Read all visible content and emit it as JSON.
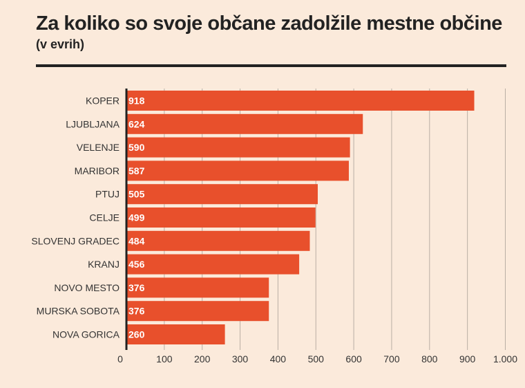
{
  "chart_data": {
    "type": "bar",
    "orientation": "horizontal",
    "title": "Za koliko so svoje občane zadolžile mestne občine",
    "subtitle": "(v evrih)",
    "categories": [
      "KOPER",
      "LJUBLJANA",
      "VELENJE",
      "MARIBOR",
      "PTUJ",
      "CELJE",
      "SLOVENJ GRADEC",
      "KRANJ",
      "NOVO MESTO",
      "MURSKA SOBOTA",
      "NOVA GORICA"
    ],
    "values": [
      918,
      624,
      590,
      587,
      505,
      499,
      484,
      456,
      376,
      376,
      260
    ],
    "value_labels": [
      "918",
      "624",
      "590",
      "587",
      "505",
      "499",
      "484",
      "456",
      "376",
      "376",
      "260"
    ],
    "xlim": [
      0,
      1000
    ],
    "ticks": [
      0,
      100,
      200,
      300,
      400,
      500,
      600,
      700,
      800,
      900,
      1000
    ],
    "tick_labels": [
      "0",
      "100",
      "200",
      "300",
      "400",
      "500",
      "600",
      "700",
      "800",
      "900",
      "1.000"
    ],
    "grid": true,
    "bar_color": "#e8502c",
    "grid_color": "#b9aea4",
    "axis_color": "#222222"
  }
}
